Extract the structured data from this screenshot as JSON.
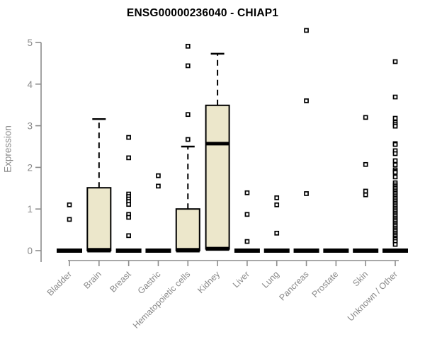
{
  "title": "ENSG00000236040 - CHIAP1",
  "colors": {
    "background": "#ffffff",
    "box_fill": "#ece7cb",
    "box_border": "#000000",
    "median": "#000000",
    "outlier_fill": "#ffffff",
    "outlier_border": "#000000",
    "axis": "#8c8c8c",
    "tick_label": "#8a8a8a",
    "title": "#000000"
  },
  "chart_data": {
    "type": "boxplot",
    "title": "ENSG00000236040 - CHIAP1",
    "xlabel": "",
    "ylabel": "Expression",
    "ylim": [
      0,
      5
    ],
    "yticks": [
      0,
      1,
      2,
      3,
      4,
      5
    ],
    "grid": false,
    "legend": "none",
    "categories": [
      "Bladder",
      "Brain",
      "Breast",
      "Gastric",
      "Hematopoietic cells",
      "Kidney",
      "Liver",
      "Lung",
      "Pancreas",
      "Prostate",
      "Skin",
      "Unknown / Other"
    ],
    "boxes": [
      {
        "category": "Bladder",
        "collapsed": true,
        "median": 0,
        "outliers": [
          1.1,
          0.75
        ]
      },
      {
        "category": "Brain",
        "collapsed": false,
        "q1": 0,
        "median": 0.02,
        "q3": 1.51,
        "whisker_low": 0,
        "whisker_high": 3.16,
        "outliers": []
      },
      {
        "category": "Breast",
        "collapsed": true,
        "median": 0,
        "outliers": [
          2.72,
          2.23,
          1.36,
          1.3,
          1.24,
          1.18,
          1.11,
          0.87,
          0.8,
          0.36
        ]
      },
      {
        "category": "Gastric",
        "collapsed": true,
        "median": 0,
        "outliers": [
          1.8,
          1.55
        ]
      },
      {
        "category": "Hematopoietic cells",
        "collapsed": false,
        "q1": 0,
        "median": 0.02,
        "q3": 1.0,
        "whisker_low": 0,
        "whisker_high": 2.5,
        "outliers": [
          4.91,
          4.44,
          3.27,
          2.67
        ]
      },
      {
        "category": "Kidney",
        "collapsed": false,
        "q1": 0.04,
        "median": 2.57,
        "q3": 3.49,
        "whisker_low": 0.04,
        "whisker_high": 4.73,
        "outliers": []
      },
      {
        "category": "Liver",
        "collapsed": true,
        "median": 0,
        "outliers": [
          1.39,
          0.87,
          0.22
        ]
      },
      {
        "category": "Lung",
        "collapsed": true,
        "median": 0,
        "outliers": [
          1.27,
          1.1,
          0.42
        ]
      },
      {
        "category": "Pancreas",
        "collapsed": true,
        "median": 0,
        "outliers": [
          5.29,
          3.6,
          1.37
        ]
      },
      {
        "category": "Prostate",
        "collapsed": true,
        "median": 0,
        "outliers": []
      },
      {
        "category": "Skin",
        "collapsed": true,
        "median": 0,
        "outliers": [
          3.2,
          2.07,
          1.43,
          1.34
        ]
      },
      {
        "category": "Unknown / Other",
        "collapsed": true,
        "median": 0,
        "outliers": [
          4.54,
          3.69,
          3.18,
          3.08,
          3.03,
          2.99,
          2.57,
          2.55,
          2.4,
          2.33,
          2.16,
          2.06,
          1.94,
          1.9,
          1.88,
          1.77,
          1.63,
          1.58,
          1.54,
          1.5,
          1.46,
          1.42,
          1.38,
          1.34,
          1.3,
          1.26,
          1.22,
          1.18,
          1.14,
          1.1,
          1.06,
          1.02,
          0.98,
          0.94,
          0.9,
          0.86,
          0.82,
          0.78,
          0.74,
          0.7,
          0.66,
          0.62,
          0.58,
          0.54,
          0.5,
          0.46,
          0.42,
          0.38,
          0.34,
          0.3,
          0.27,
          0.22,
          0.15
        ]
      }
    ]
  }
}
